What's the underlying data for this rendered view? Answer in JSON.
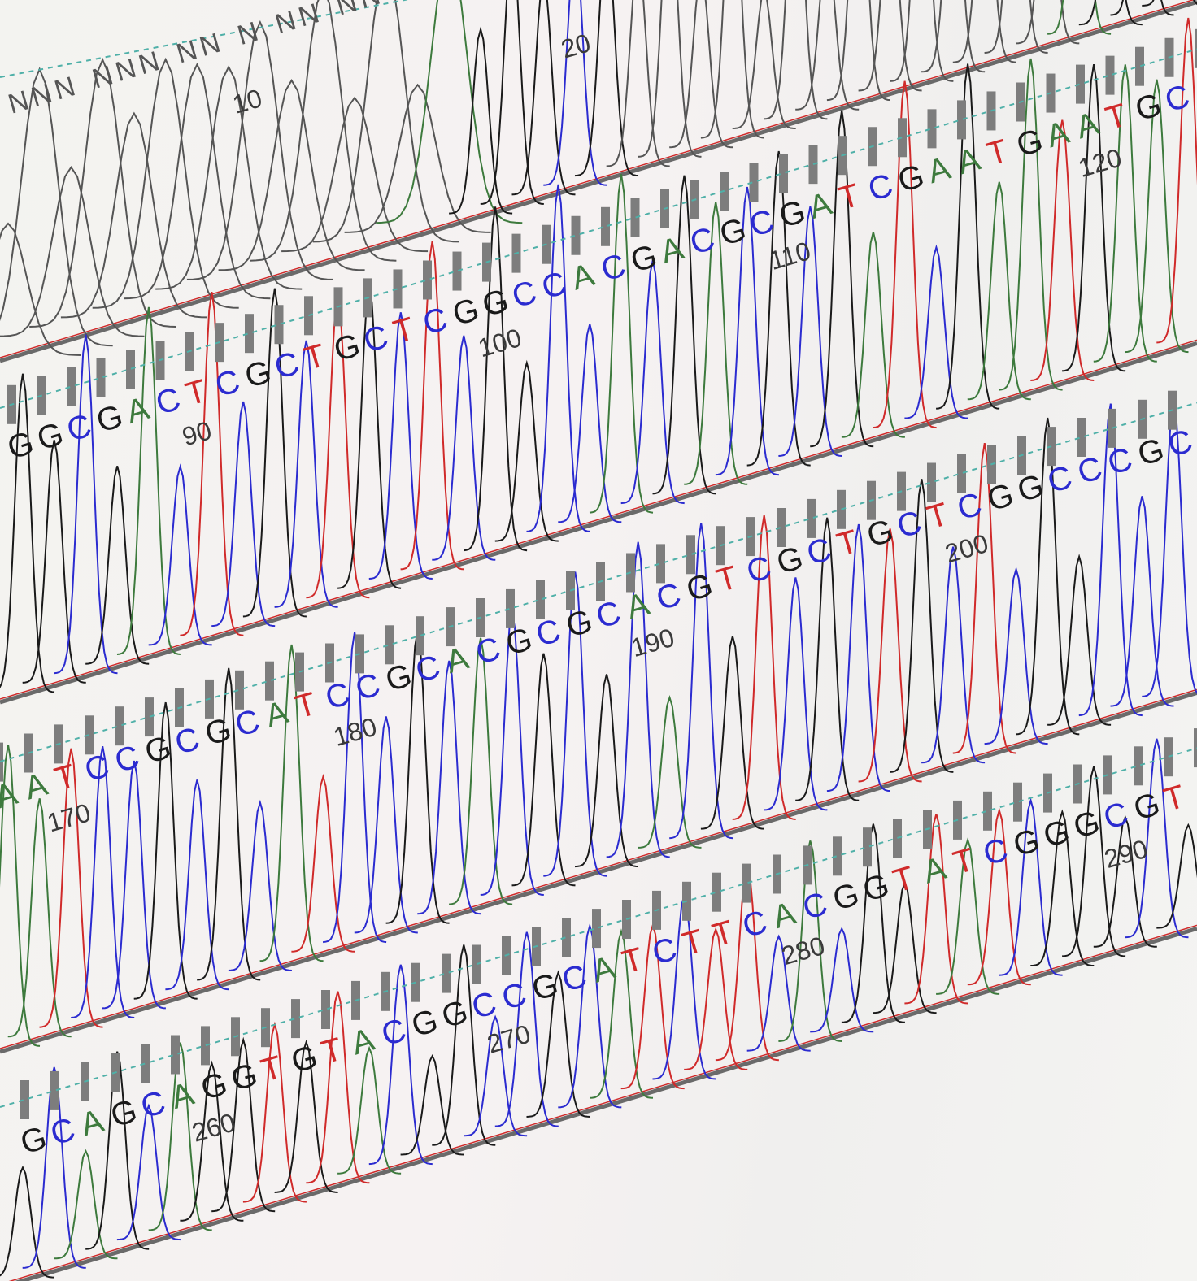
{
  "colors": {
    "A": "#3d7a3d",
    "C": "#2b2bd0",
    "G": "#1a1a1a",
    "T": "#d02a2a",
    "N": "#555555",
    "quality_bar": "#7d7d7d",
    "baseline_rule": "#6a6a6a",
    "dashed_line": "#4fb0a8"
  },
  "rows": [
    {
      "id": "row-1",
      "calls": "NNN NNN NN N NN NN NAGGGCG",
      "position_labels": [
        "10",
        "20"
      ]
    },
    {
      "id": "row-2",
      "calls": "GGCGACTCGCTGCTCGGCCACGACGCGATCGAATGAATGC",
      "position_labels": [
        "90",
        "100",
        "110",
        "120"
      ]
    },
    {
      "id": "row-3",
      "calls": "AATCCGCGCATCCGCACGCGCACGTCGCTGCTCGGCCCGCA",
      "position_labels": [
        "170",
        "180",
        "190",
        "200"
      ]
    },
    {
      "id": "row-4",
      "calls": "GCAGCAGGTGTACGGCCGCATCTTCACGGTATCGGGCGT",
      "position_labels": [
        "260",
        "270",
        "280",
        "290"
      ]
    }
  ]
}
